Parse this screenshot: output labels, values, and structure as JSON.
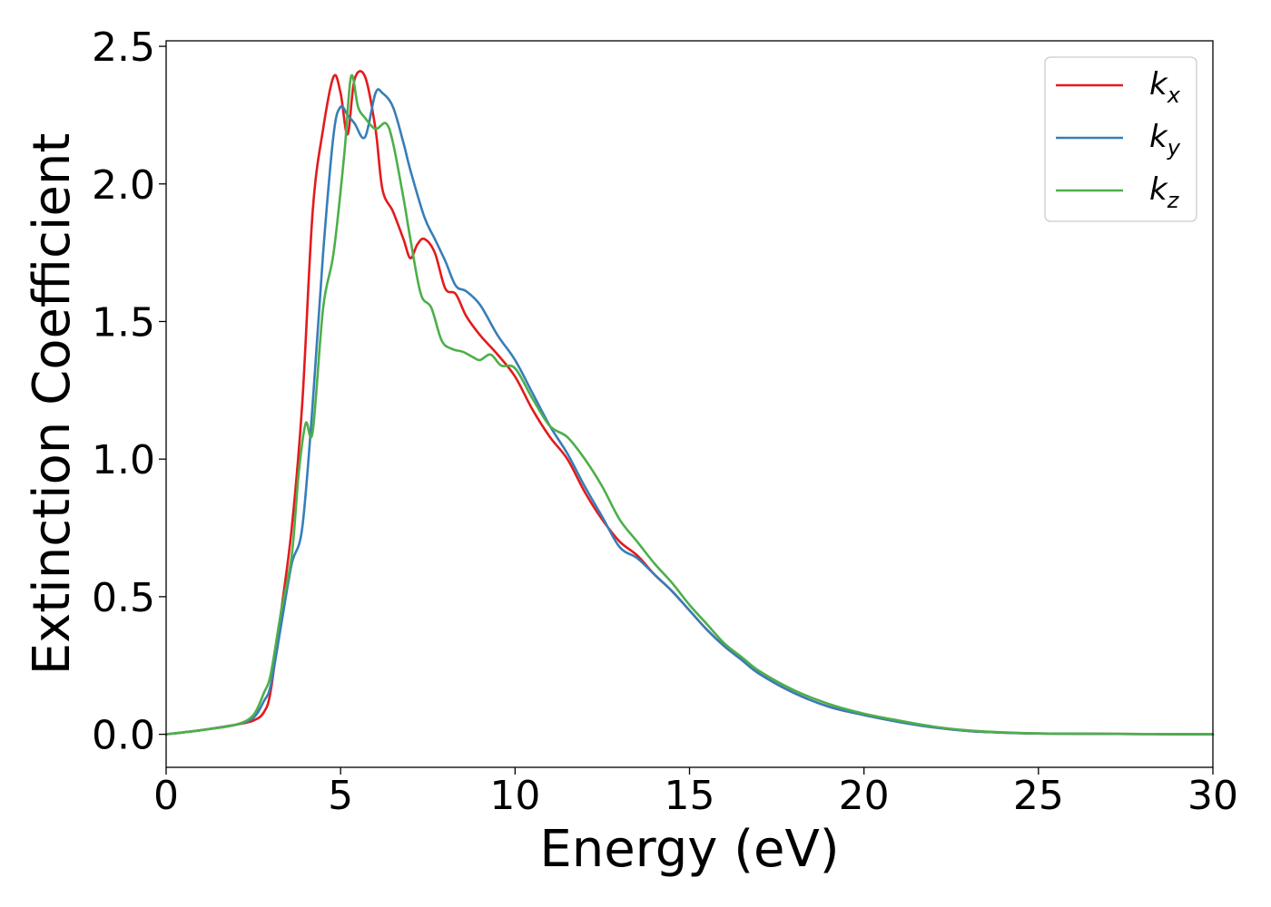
{
  "chart_data": {
    "type": "line",
    "xlabel": "Energy (eV)",
    "ylabel": "Extinction Coefficient",
    "xlim": [
      0,
      30
    ],
    "ylim": [
      -0.12,
      2.52
    ],
    "xticks": [
      0,
      5,
      10,
      15,
      20,
      25,
      30
    ],
    "xtick_labels": [
      "0",
      "5",
      "10",
      "15",
      "20",
      "25",
      "30"
    ],
    "yticks": [
      0.0,
      0.5,
      1.0,
      1.5,
      2.0,
      2.5
    ],
    "ytick_labels": [
      "0.0",
      "0.5",
      "1.0",
      "1.5",
      "2.0",
      "2.5"
    ],
    "grid": false,
    "legend": {
      "placement": "top-right"
    },
    "series": [
      {
        "name": "k",
        "sub": "x",
        "color": "#e41a1c",
        "x": [
          0,
          1,
          2,
          2.5,
          2.8,
          3.0,
          3.3,
          3.6,
          3.9,
          4.2,
          4.5,
          4.8,
          5.0,
          5.2,
          5.4,
          5.7,
          6.0,
          6.2,
          6.5,
          6.8,
          7.0,
          7.2,
          7.4,
          7.7,
          8.0,
          8.3,
          8.6,
          9.0,
          9.5,
          10.0,
          10.5,
          11.0,
          11.5,
          12.0,
          12.5,
          13.0,
          13.5,
          14.0,
          14.5,
          15.0,
          15.5,
          16.0,
          16.5,
          17.0,
          18.0,
          19.0,
          20.0,
          21.0,
          22.0,
          23.0,
          24.0,
          25.0,
          26.0,
          28.0,
          30.0
        ],
        "y": [
          0.0,
          0.015,
          0.035,
          0.05,
          0.08,
          0.16,
          0.45,
          0.75,
          1.2,
          1.9,
          2.2,
          2.39,
          2.33,
          2.18,
          2.38,
          2.39,
          2.2,
          1.98,
          1.9,
          1.8,
          1.73,
          1.78,
          1.8,
          1.75,
          1.62,
          1.6,
          1.52,
          1.45,
          1.38,
          1.3,
          1.18,
          1.08,
          1.0,
          0.88,
          0.78,
          0.7,
          0.65,
          0.58,
          0.52,
          0.45,
          0.38,
          0.32,
          0.27,
          0.22,
          0.15,
          0.1,
          0.07,
          0.045,
          0.025,
          0.012,
          0.006,
          0.003,
          0.002,
          0.001,
          0.0
        ]
      },
      {
        "name": "k",
        "sub": "y",
        "color": "#377eb8",
        "x": [
          0,
          1,
          2,
          2.5,
          2.8,
          3.0,
          3.3,
          3.6,
          3.9,
          4.2,
          4.5,
          4.8,
          5.0,
          5.2,
          5.4,
          5.7,
          6.0,
          6.2,
          6.5,
          6.8,
          7.0,
          7.4,
          7.7,
          8.0,
          8.3,
          8.6,
          9.0,
          9.5,
          10.0,
          10.5,
          11.0,
          11.5,
          12.0,
          12.5,
          13.0,
          13.5,
          14.0,
          14.5,
          15.0,
          15.5,
          16.0,
          16.5,
          17.0,
          18.0,
          19.0,
          20.0,
          21.0,
          22.0,
          23.0,
          24.0,
          25.0,
          26.0,
          28.0,
          30.0
        ],
        "y": [
          0.0,
          0.015,
          0.035,
          0.06,
          0.12,
          0.18,
          0.4,
          0.62,
          0.75,
          1.2,
          1.75,
          2.18,
          2.28,
          2.25,
          2.22,
          2.17,
          2.33,
          2.33,
          2.28,
          2.15,
          2.05,
          1.88,
          1.8,
          1.72,
          1.63,
          1.61,
          1.56,
          1.45,
          1.36,
          1.24,
          1.12,
          1.02,
          0.9,
          0.79,
          0.68,
          0.64,
          0.58,
          0.52,
          0.45,
          0.38,
          0.32,
          0.27,
          0.22,
          0.15,
          0.1,
          0.07,
          0.045,
          0.025,
          0.012,
          0.006,
          0.003,
          0.002,
          0.001,
          0.0
        ]
      },
      {
        "name": "k",
        "sub": "z",
        "color": "#4daf4a",
        "x": [
          0,
          1,
          2,
          2.5,
          2.8,
          3.0,
          3.3,
          3.6,
          3.8,
          4.0,
          4.2,
          4.5,
          4.8,
          5.1,
          5.3,
          5.5,
          5.7,
          6.0,
          6.3,
          6.5,
          6.8,
          7.0,
          7.3,
          7.6,
          7.9,
          8.2,
          8.5,
          8.8,
          9.0,
          9.3,
          9.6,
          10.0,
          10.5,
          11.0,
          11.5,
          12.0,
          12.5,
          13.0,
          13.5,
          14.0,
          14.5,
          15.0,
          15.5,
          16.0,
          16.5,
          17.0,
          18.0,
          19.0,
          20.0,
          21.0,
          22.0,
          23.0,
          24.0,
          25.0,
          26.0,
          28.0,
          30.0
        ],
        "y": [
          0.0,
          0.015,
          0.035,
          0.07,
          0.15,
          0.22,
          0.45,
          0.65,
          0.95,
          1.13,
          1.1,
          1.55,
          1.75,
          2.1,
          2.39,
          2.28,
          2.24,
          2.2,
          2.22,
          2.15,
          1.95,
          1.8,
          1.6,
          1.55,
          1.43,
          1.4,
          1.39,
          1.37,
          1.36,
          1.38,
          1.34,
          1.33,
          1.22,
          1.12,
          1.08,
          1.0,
          0.9,
          0.78,
          0.7,
          0.62,
          0.55,
          0.47,
          0.4,
          0.33,
          0.28,
          0.23,
          0.16,
          0.11,
          0.075,
          0.05,
          0.028,
          0.014,
          0.007,
          0.003,
          0.002,
          0.001,
          0.0
        ]
      }
    ]
  }
}
